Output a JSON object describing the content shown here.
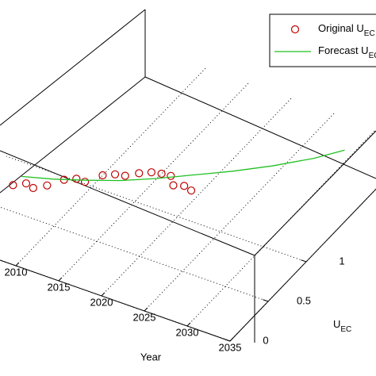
{
  "chart_data": {
    "type": "line3d",
    "xlabel": "Year",
    "ylabel": {
      "base": "U",
      "sub": "EC"
    },
    "xlim": [
      2000,
      2035
    ],
    "xticks": [
      2010,
      2015,
      2020,
      2025,
      2030,
      2035
    ],
    "ylim": [
      0,
      2.5
    ],
    "yticks": [
      0,
      0.5,
      1
    ],
    "grid": true,
    "legend": "upper right",
    "series": [
      {
        "name": "Original U",
        "name_sub": "EC",
        "style": "markers",
        "color": "#c00000",
        "x": [
          2003,
          2004,
          2005,
          2006,
          2007,
          2008,
          2009,
          2010,
          2011,
          2012,
          2013,
          2014,
          2015,
          2016,
          2017,
          2018,
          2019
        ],
        "values": [
          0.75,
          0.81,
          0.79,
          0.86,
          0.97,
          1.02,
          1.02,
          1.14,
          1.19,
          1.21,
          1.28,
          1.33,
          1.35,
          1.36,
          1.28,
          1.31,
          1.29
        ]
      },
      {
        "name": "Forecast U",
        "name_sub": "EC",
        "style": "line",
        "color": "#22c022",
        "x": [
          2003,
          2006,
          2009,
          2012,
          2015,
          2018,
          2021,
          2024,
          2027,
          2029
        ],
        "values": [
          0.86,
          0.94,
          1.04,
          1.15,
          1.29,
          1.45,
          1.61,
          1.79,
          2.0,
          2.18
        ]
      }
    ]
  }
}
